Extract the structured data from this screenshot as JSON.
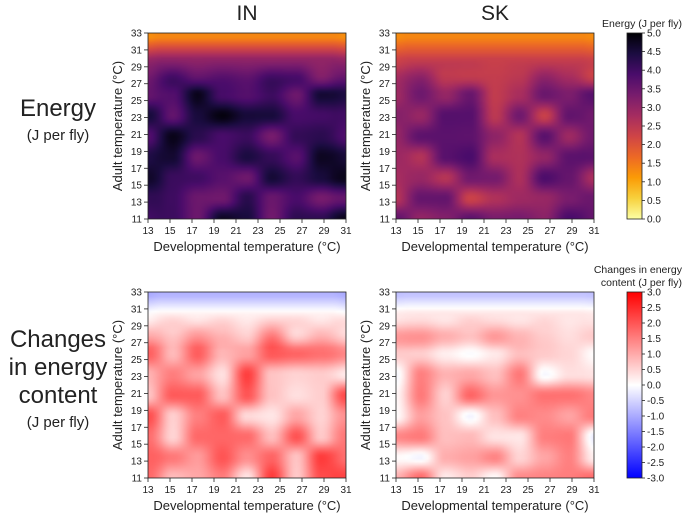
{
  "column_titles": [
    "IN",
    "SK"
  ],
  "row_labels": [
    {
      "main": [
        "Energy"
      ],
      "sub": "(J per fly)"
    },
    {
      "main": [
        "Changes",
        "in energy",
        "content"
      ],
      "sub": "(J per fly)"
    }
  ],
  "chart_data": {
    "type": "heatmap",
    "xlabel": "Developmental temperature (°C)",
    "ylabel": "Adult temperature (°C)",
    "x_ticks": [
      "13",
      "15",
      "17",
      "19",
      "21",
      "23",
      "25",
      "27",
      "29",
      "31"
    ],
    "y_ticks": [
      "11",
      "13",
      "15",
      "17",
      "19",
      "21",
      "23",
      "25",
      "27",
      "29",
      "31",
      "33"
    ],
    "xlim": [
      13,
      31
    ],
    "ylim": [
      11,
      33
    ],
    "colorbars": [
      {
        "id": "energy",
        "title": [
          "Energy (J per fly)"
        ],
        "range": [
          0,
          5
        ],
        "ticks": [
          "0.0",
          "0.5",
          "1.0",
          "1.5",
          "2.0",
          "2.5",
          "3.0",
          "3.5",
          "4.0",
          "4.5",
          "5.0"
        ],
        "colormap": [
          "#fcffa4",
          "#f7d13d",
          "#fb9b06",
          "#ed6925",
          "#cf4446",
          "#a52c60",
          "#781c6d",
          "#4a0c6b",
          "#1b0c41",
          "#000004"
        ]
      },
      {
        "id": "change",
        "title": [
          "Changes in energy",
          "content (J per fly)"
        ],
        "range": [
          -3,
          3
        ],
        "ticks": [
          "-3.0",
          "-2.5",
          "-2.0",
          "-1.5",
          "-1.0",
          "-0.5",
          "0.0",
          "0.5",
          "1.0",
          "1.5",
          "2.0",
          "2.5",
          "3.0"
        ],
        "colormap": [
          "#0000ff",
          "#ffffff",
          "#ff0000"
        ]
      }
    ],
    "panels": [
      {
        "row": 0,
        "col": 0,
        "population": "IN",
        "measure": "Energy",
        "colorbar": "energy",
        "base": 4.15,
        "hot_y": 32.4,
        "hot_value": 1.35,
        "cold_y": 30.0,
        "cold_value": 3.0
      },
      {
        "row": 0,
        "col": 1,
        "population": "SK",
        "measure": "Energy",
        "colorbar": "energy",
        "base": 3.1,
        "hot_y": 32.4,
        "hot_value": 1.35,
        "cold_y": 30.0,
        "cold_value": 2.3
      },
      {
        "row": 1,
        "col": 0,
        "population": "IN",
        "measure": "Changes in energy content",
        "colorbar": "change",
        "base": 1.3,
        "hot_y": 32.6,
        "hot_value": -0.9,
        "cold_y": 30.5,
        "cold_value": 0.15
      },
      {
        "row": 1,
        "col": 1,
        "population": "SK",
        "measure": "Changes in energy content",
        "colorbar": "change",
        "base": 0.8,
        "hot_y": 32.6,
        "hot_value": -0.7,
        "cold_y": 30.5,
        "cold_value": 0.3
      }
    ]
  }
}
